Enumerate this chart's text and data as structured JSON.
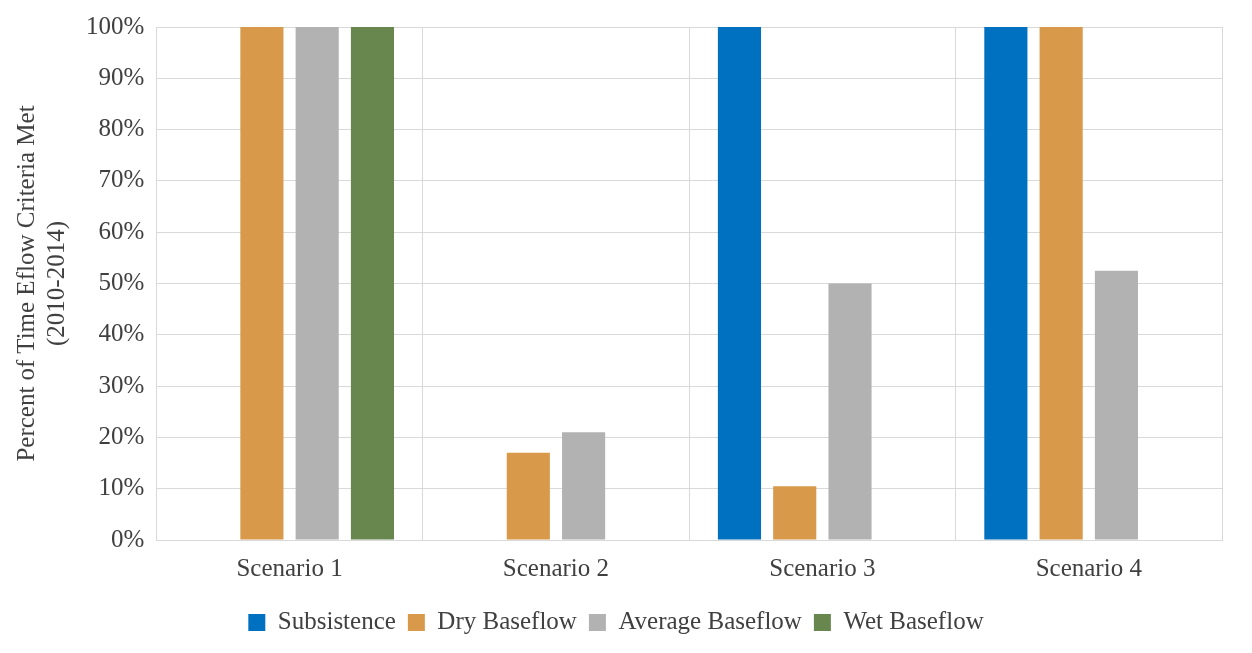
{
  "chart_data": {
    "type": "bar",
    "ylabel": "Percent of Time Eflow Criteria Met\n(2010-2014)",
    "categories": [
      "Scenario 1",
      "Scenario 2",
      "Scenario 3",
      "Scenario 4"
    ],
    "series": [
      {
        "name": "Subsistence",
        "color": "#0070c0",
        "values": [
          0,
          0,
          100,
          100
        ]
      },
      {
        "name": "Dry Baseflow",
        "color": "#d9994a",
        "values": [
          100,
          17,
          10.5,
          100
        ]
      },
      {
        "name": "Average Baseflow",
        "color": "#b2b2b2",
        "values": [
          100,
          21,
          50,
          52.5
        ]
      },
      {
        "name": "Wet Baseflow",
        "color": "#68874f",
        "values": [
          100,
          0,
          0,
          0
        ]
      }
    ],
    "ylim": [
      0,
      100
    ],
    "yticks": [
      {
        "value": 0,
        "label": "0%"
      },
      {
        "value": 10,
        "label": "10%"
      },
      {
        "value": 20,
        "label": "20%"
      },
      {
        "value": 30,
        "label": "30%"
      },
      {
        "value": 40,
        "label": "40%"
      },
      {
        "value": 50,
        "label": "50%"
      },
      {
        "value": 60,
        "label": "60%"
      },
      {
        "value": 70,
        "label": "70%"
      },
      {
        "value": 80,
        "label": "80%"
      },
      {
        "value": 90,
        "label": "90%"
      },
      {
        "value": 100,
        "label": "100%"
      }
    ],
    "grid": true,
    "legend": "bottom"
  }
}
